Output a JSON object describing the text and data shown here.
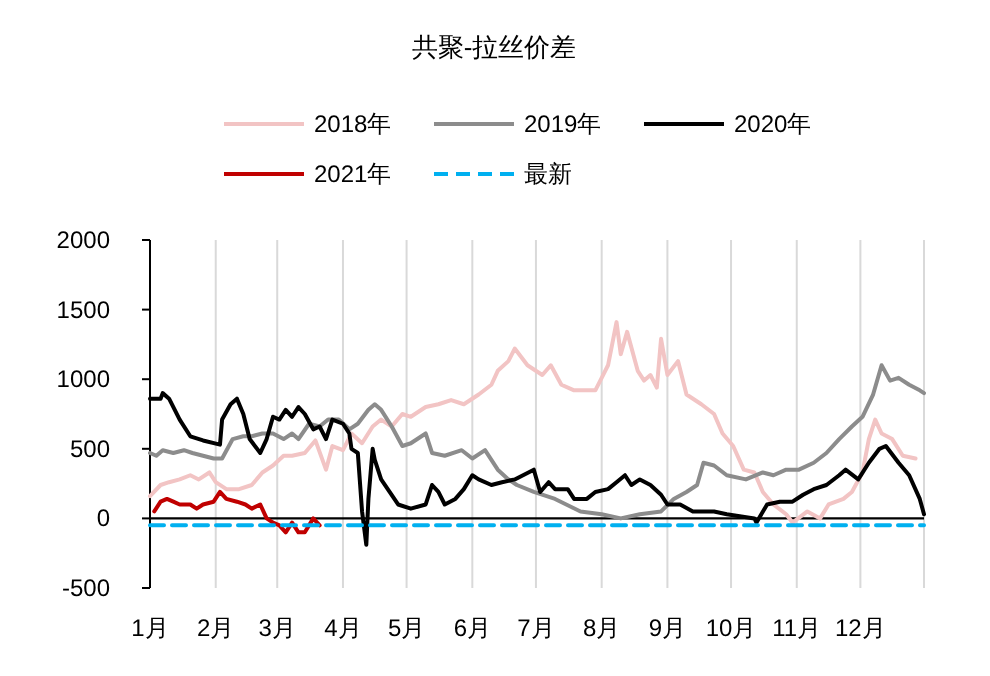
{
  "chart_data": {
    "type": "line",
    "title": "共聚-拉丝价差",
    "xlim": [
      "--01-01",
      "--12-31"
    ],
    "xticks": [
      {
        "value": "--01-01",
        "label": "1月"
      },
      {
        "value": "--02-01",
        "label": "2月"
      },
      {
        "value": "--03-01",
        "label": "3月"
      },
      {
        "value": "--04-01",
        "label": "4月"
      },
      {
        "value": "--05-01",
        "label": "5月"
      },
      {
        "value": "--06-01",
        "label": "6月"
      },
      {
        "value": "--07-01",
        "label": "7月"
      },
      {
        "value": "--08-01",
        "label": "8月"
      },
      {
        "value": "--09-01",
        "label": "9月"
      },
      {
        "value": "--10-01",
        "label": "10月"
      },
      {
        "value": "--11-01",
        "label": "11月"
      },
      {
        "value": "--12-01",
        "label": "12月"
      }
    ],
    "ylim": [
      -500,
      2000
    ],
    "yticks": [
      -500,
      0,
      500,
      1000,
      1500,
      2000
    ],
    "grid": "x",
    "legend": "top",
    "marker": "none",
    "series": [
      {
        "name": "2018年",
        "color": "#f2c4c4",
        "x": [
          "--01-01",
          "--01-06",
          "--01-10",
          "--01-15",
          "--01-20",
          "--01-24",
          "--01-29",
          "--02-01",
          "--02-06",
          "--02-12",
          "--02-18",
          "--02-23",
          "--02-28",
          "--03-04",
          "--03-08",
          "--03-14",
          "--03-19",
          "--03-24",
          "--03-27",
          "--04-01",
          "--04-05",
          "--04-10",
          "--04-15",
          "--04-19",
          "--04-24",
          "--04-29",
          "--05-03",
          "--05-10",
          "--05-16",
          "--05-22",
          "--05-28",
          "--06-04",
          "--06-10",
          "--06-13",
          "--06-18",
          "--06-21",
          "--06-27",
          "--07-04",
          "--07-08",
          "--07-13",
          "--07-19",
          "--07-29",
          "--08-01",
          "--08-04",
          "--08-08",
          "--08-10",
          "--08-13",
          "--08-18",
          "--08-21",
          "--08-24",
          "--08-27",
          "--08-29",
          "--09-01",
          "--09-06",
          "--09-10",
          "--09-17",
          "--09-23",
          "--09-27",
          "--10-02",
          "--10-07",
          "--10-12",
          "--10-16",
          "--10-21",
          "--10-27",
          "--10-30",
          "--11-06",
          "--11-12",
          "--11-16",
          "--11-23",
          "--11-27",
          "--12-02",
          "--12-05",
          "--12-08",
          "--12-11",
          "--12-16",
          "--12-21",
          "--12-27"
        ],
        "values": [
          160,
          240,
          260,
          280,
          310,
          280,
          330,
          260,
          210,
          210,
          240,
          330,
          380,
          450,
          450,
          470,
          560,
          350,
          520,
          490,
          610,
          540,
          660,
          710,
          660,
          750,
          730,
          800,
          820,
          850,
          820,
          890,
          960,
          1060,
          1130,
          1220,
          1100,
          1030,
          1100,
          960,
          920,
          920,
          1010,
          1100,
          1410,
          1180,
          1340,
          1060,
          990,
          1030,
          940,
          1290,
          1030,
          1130,
          890,
          820,
          750,
          610,
          520,
          350,
          330,
          190,
          100,
          30,
          -30,
          50,
          0,
          100,
          140,
          190,
          330,
          570,
          710,
          610,
          570,
          450,
          430
        ]
      },
      {
        "name": "2019年",
        "color": "#8c8c8c",
        "x": [
          "--01-01",
          "--01-04",
          "--01-07",
          "--01-12",
          "--01-17",
          "--01-21",
          "--01-26",
          "--01-31",
          "--02-04",
          "--02-09",
          "--02-14",
          "--02-18",
          "--02-23",
          "--02-28",
          "--03-04",
          "--03-08",
          "--03-11",
          "--03-16",
          "--03-21",
          "--03-25",
          "--03-30",
          "--04-04",
          "--04-08",
          "--04-13",
          "--04-16",
          "--04-19",
          "--04-24",
          "--04-29",
          "--05-03",
          "--05-10",
          "--05-13",
          "--05-19",
          "--05-27",
          "--06-01",
          "--06-07",
          "--06-13",
          "--06-18",
          "--06-22",
          "--06-30",
          "--07-10",
          "--07-22",
          "--08-01",
          "--08-10",
          "--08-19",
          "--08-29",
          "--09-04",
          "--09-10",
          "--09-15",
          "--09-18",
          "--09-23",
          "--09-29",
          "--10-08",
          "--10-16",
          "--10-21",
          "--10-27",
          "--11-02",
          "--11-09",
          "--11-15",
          "--11-21",
          "--11-27",
          "--12-02",
          "--12-07",
          "--12-11",
          "--12-15",
          "--12-19",
          "--12-24",
          "--12-29",
          "--12-31"
        ],
        "values": [
          470,
          450,
          490,
          470,
          490,
          470,
          450,
          430,
          430,
          570,
          590,
          590,
          610,
          610,
          570,
          610,
          570,
          680,
          660,
          710,
          710,
          640,
          680,
          780,
          820,
          780,
          660,
          520,
          540,
          610,
          470,
          450,
          490,
          430,
          490,
          350,
          280,
          240,
          190,
          140,
          50,
          30,
          0,
          30,
          50,
          140,
          190,
          240,
          400,
          380,
          310,
          280,
          330,
          310,
          350,
          350,
          400,
          470,
          570,
          660,
          730,
          890,
          1100,
          990,
          1010,
          960,
          920,
          900
        ]
      },
      {
        "name": "2020年",
        "color": "#000000",
        "x": [
          "--01-01",
          "--01-06",
          "--01-07",
          "--01-10",
          "--01-15",
          "--01-20",
          "--01-26",
          "--02-03",
          "--02-04",
          "--02-08",
          "--02-11",
          "--02-14",
          "--02-17",
          "--02-22",
          "--02-25",
          "--02-28",
          "--03-02",
          "--03-05",
          "--03-08",
          "--03-11",
          "--03-14",
          "--03-18",
          "--03-21",
          "--03-24",
          "--03-27",
          "--04-01",
          "--04-04",
          "--04-05",
          "--04-08",
          "--04-10",
          "--04-12",
          "--04-13",
          "--04-15",
          "--04-16",
          "--04-19",
          "--04-23",
          "--04-27",
          "--05-03",
          "--05-10",
          "--05-13",
          "--05-16",
          "--05-19",
          "--05-24",
          "--05-28",
          "--06-01",
          "--06-04",
          "--06-10",
          "--06-15",
          "--06-21",
          "--06-30",
          "--07-03",
          "--07-07",
          "--07-10",
          "--07-16",
          "--07-19",
          "--07-25",
          "--07-29",
          "--08-04",
          "--08-08",
          "--08-12",
          "--08-15",
          "--08-19",
          "--08-24",
          "--08-29",
          "--09-01",
          "--09-07",
          "--09-13",
          "--09-23",
          "--09-29",
          "--10-12",
          "--10-13",
          "--10-18",
          "--10-24",
          "--10-30",
          "--11-04",
          "--11-09",
          "--11-15",
          "--11-21",
          "--11-24",
          "--11-30",
          "--12-05",
          "--12-10",
          "--12-13",
          "--12-19",
          "--12-24",
          "--12-29",
          "--12-31"
        ],
        "values": [
          860,
          860,
          900,
          860,
          710,
          590,
          560,
          530,
          710,
          820,
          860,
          750,
          570,
          470,
          570,
          730,
          710,
          780,
          730,
          800,
          750,
          640,
          660,
          570,
          710,
          680,
          610,
          500,
          470,
          50,
          -190,
          140,
          500,
          420,
          280,
          190,
          100,
          70,
          100,
          240,
          190,
          100,
          140,
          210,
          310,
          280,
          240,
          260,
          280,
          350,
          190,
          260,
          210,
          210,
          140,
          140,
          190,
          210,
          260,
          310,
          240,
          280,
          240,
          170,
          100,
          100,
          50,
          50,
          30,
          0,
          -30,
          100,
          120,
          120,
          170,
          210,
          240,
          310,
          350,
          280,
          400,
          500,
          520,
          400,
          310,
          140,
          30
        ]
      },
      {
        "name": "2021年",
        "color": "#c00000",
        "x": [
          "--01-03",
          "--01-06",
          "--01-09",
          "--01-12",
          "--01-15",
          "--01-20",
          "--01-23",
          "--01-26",
          "--01-31",
          "--02-03",
          "--02-06",
          "--02-11",
          "--02-15",
          "--02-18",
          "--02-22",
          "--02-25",
          "--02-28",
          "--03-02",
          "--03-05",
          "--03-08",
          "--03-11",
          "--03-14",
          "--03-18",
          "--03-21"
        ],
        "values": [
          50,
          120,
          140,
          120,
          100,
          100,
          70,
          100,
          120,
          190,
          140,
          120,
          100,
          70,
          100,
          0,
          -30,
          -50,
          -100,
          -30,
          -100,
          -100,
          0,
          -50
        ]
      },
      {
        "name": "最新",
        "color": "#00b0f0",
        "line_style": "dashed",
        "x": [
          "--01-01",
          "--12-31"
        ],
        "values": [
          -50,
          -50
        ]
      }
    ]
  }
}
